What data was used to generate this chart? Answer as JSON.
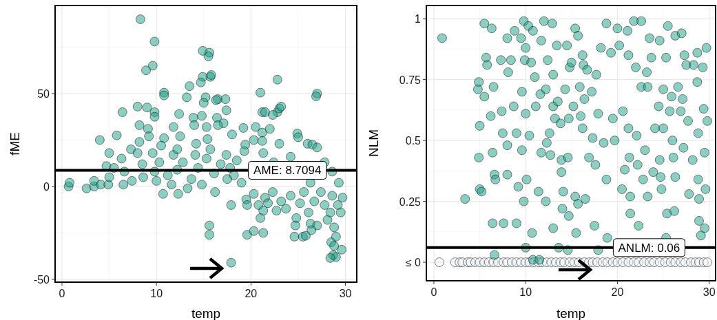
{
  "chart_data": [
    {
      "type": "scatter",
      "xlabel": "temp",
      "ylabel": "fME",
      "xlim": [
        -0.73,
        31.2
      ],
      "ylim": [
        -51.5,
        97.4
      ],
      "xticks": [
        0,
        10,
        20,
        30
      ],
      "yticks": [
        -50,
        0,
        50
      ],
      "grid": true,
      "marker": "circle",
      "ref_lines": [
        {
          "axis": "y",
          "value": 8.7094,
          "label": "AME: 8.7094",
          "color": "#000000"
        }
      ],
      "series": [
        {
          "color": "#1b9e85",
          "x": [
            8.3,
            9.8,
            9.6,
            8.9,
            14.9,
            15.6,
            15.5,
            15.7,
            15.8,
            14.9,
            14.7,
            13.5,
            22.8,
            10.8,
            10.8,
            21.0,
            27.0,
            26.9,
            13.2,
            15.2,
            16.5,
            17.3,
            16.3,
            15.0,
            8.0,
            9.0,
            9.8,
            6.4,
            17.4,
            21.2,
            21.5,
            22.8,
            23.0,
            23.2,
            22.3,
            9.8,
            12.4,
            13.9,
            14.8,
            16.4,
            17.1,
            8.2,
            9.1,
            11.8,
            14.0,
            15.3,
            16.5,
            19.2,
            20.5,
            21.2,
            22.0,
            24.9,
            25.0,
            5.8,
            4.0,
            10.8,
            12.5,
            15.4,
            18.0,
            20.3,
            21.2,
            19.4,
            23.0,
            26.0,
            26.5,
            27.0,
            0.7,
            0.8,
            2.6,
            3.4,
            3.4,
            4.1,
            4.9,
            5.0,
            4.7,
            5.0,
            5.5,
            6.3,
            6.5,
            6.6,
            7.4,
            7.3,
            8.0,
            8.2,
            8.5,
            8.6,
            9.2,
            9.6,
            9.8,
            10.0,
            10.5,
            10.7,
            10.3,
            11.2,
            11.6,
            11.8,
            12.2,
            12.3,
            12.2,
            12.8,
            13.3,
            13.7,
            14.1,
            14.4,
            14.2,
            14.8,
            15.3,
            15.7,
            16.1,
            16.2,
            16.8,
            17.4,
            17.5,
            17.8,
            18.2,
            18.5,
            19.0,
            19.3,
            17.9,
            19.5,
            19.6,
            20.3,
            20.8,
            21.0,
            21.3,
            21.5,
            21.8,
            22.3,
            22.7,
            23.2,
            23.7,
            24.2,
            24.8,
            24.7,
            25.2,
            25.6,
            26.1,
            26.3,
            26.7,
            27.0,
            27.4,
            27.8,
            28.1,
            28.4,
            28.6,
            28.8,
            29.2,
            29.5,
            29.7,
            21.3,
            22.4,
            24.2,
            26.3,
            27.8,
            28.6,
            29.3,
            15.6,
            15.6,
            17.9,
            19.6,
            20.3,
            21.3,
            24.6,
            25.5,
            25.8,
            26.4,
            28.5,
            28.7,
            29.0,
            28.4,
            29.6,
            28.8,
            29.0
          ],
          "values": [
            90,
            78,
            65,
            62.5,
            73,
            72,
            70,
            59,
            60,
            59,
            56,
            54,
            57.5,
            50.5,
            49,
            50.5,
            50,
            48.5,
            48,
            48,
            47,
            47,
            46.5,
            45,
            43,
            42.5,
            40,
            40,
            41,
            40,
            40,
            40,
            42,
            43,
            38.5,
            37.5,
            39,
            37,
            38,
            37,
            34,
            33,
            31,
            32,
            33,
            32,
            33,
            31.5,
            32,
            29,
            31,
            28.5,
            26.5,
            27.5,
            25,
            26,
            27,
            25.5,
            28,
            25,
            24.5,
            22.5,
            23,
            23,
            22.5,
            21,
            0,
            2,
            -1,
            0,
            3,
            1,
            1,
            5,
            11,
            18,
            10,
            15,
            1,
            8,
            3,
            20,
            18,
            24,
            12,
            5,
            27,
            18,
            8,
            3,
            22,
            -4,
            13,
            6,
            1,
            17,
            20,
            -4,
            9,
            13,
            -1,
            4,
            17,
            10,
            23,
            1,
            15,
            20,
            7,
            -3,
            12,
            17,
            4,
            10,
            6,
            14,
            2,
            19,
            -10,
            -7,
            -10,
            -4,
            -10,
            -17,
            -13,
            -6,
            -9,
            -3,
            -13,
            -8,
            -12,
            -5,
            -17,
            -21,
            -9,
            -3,
            -14,
            -20,
            -8,
            -21,
            -3,
            -10,
            -18,
            -14,
            -5,
            -22,
            -10,
            -14,
            -6,
            18,
            13,
            16,
            2,
            13,
            8,
            2,
            -21,
            -26,
            -41,
            -26,
            -24,
            -25,
            -27,
            -27,
            -26.5,
            -23.5,
            -30,
            -37,
            -38,
            -38.5,
            -34,
            -32,
            -27
          ]
        }
      ]
    },
    {
      "type": "scatter",
      "xlabel": "temp",
      "ylabel": "NLM",
      "xlim": [
        -0.82,
        30.7
      ],
      "ylim": [
        -0.076,
        1.054
      ],
      "xticks": [
        0,
        10,
        20,
        30
      ],
      "yticks": [
        {
          "value": 0,
          "label": "≤ 0"
        },
        0.25,
        0.5,
        0.75,
        1
      ],
      "grid": true,
      "marker": "circle",
      "ref_lines": [
        {
          "axis": "y",
          "value": 0.06,
          "label": "ANLM: 0.06",
          "color": "#000000"
        }
      ],
      "series": [
        {
          "color": "#eef5fc",
          "x": [
            0.6,
            2.3,
            2.8,
            3.1,
            3.7,
            4.0,
            4.5,
            5.0,
            5.5,
            6.0,
            6.5,
            7.0,
            7.6,
            8.0,
            8.5,
            9.0,
            9.5,
            10.0,
            10.4,
            10.9,
            11.4,
            11.8,
            12.3,
            12.8,
            13.3,
            13.8,
            14.2,
            14.8,
            15.3,
            15.8,
            16.4,
            16.9,
            17.3,
            17.8,
            18.4,
            18.9,
            19.5,
            20.0,
            20.6,
            21.2,
            21.8,
            22.3,
            22.9,
            23.5,
            24.0,
            24.6,
            25.2,
            25.8,
            26.3,
            26.9,
            27.4,
            28.0,
            28.5,
            28.9,
            29.4,
            29.8
          ],
          "values": [
            0,
            0,
            0,
            0,
            0,
            0,
            0,
            0,
            0,
            0,
            0,
            0,
            0,
            0,
            0,
            0,
            0,
            0,
            0,
            0,
            0,
            0,
            0,
            0,
            0,
            0,
            0,
            0,
            0,
            0,
            0,
            0,
            0,
            0,
            0,
            0,
            0,
            0,
            0,
            0,
            0,
            0,
            0,
            0,
            0,
            0,
            0,
            0,
            0,
            0,
            0,
            0,
            0,
            0,
            0,
            0
          ]
        },
        {
          "color": "#1b9e85",
          "x": [
            0.9,
            3.4,
            4.9,
            4.8,
            4.9,
            5.0,
            5.0,
            5.2,
            5.5,
            5.7,
            5.5,
            5.8,
            6.3,
            6.2,
            6.5,
            6.4,
            6.6,
            6.7,
            6.4,
            6.6,
            7.3,
            7.4,
            7.5,
            7.6,
            8.0,
            8.1,
            8.0,
            8.0,
            8.4,
            8.8,
            8.7,
            9.0,
            9.0,
            9.2,
            9.5,
            9.6,
            9.6,
            9.8,
            9.9,
            9.8,
            10.0,
            10.0,
            10.1,
            10.0,
            10.3,
            10.4,
            10.6,
            10.7,
            10.8,
            10.8,
            11.0,
            11.1,
            11.4,
            11.6,
            11.5,
            11.7,
            11.7,
            12.0,
            12.2,
            12.3,
            12.2,
            12.4,
            12.6,
            12.7,
            12.9,
            13.0,
            13.0,
            13.2,
            13.0,
            13.4,
            13.5,
            13.6,
            13.8,
            13.9,
            13.9,
            14.0,
            14.1,
            14.3,
            14.5,
            14.6,
            14.7,
            14.7,
            14.6,
            14.8,
            15.0,
            15.4,
            15.2,
            15.4,
            15.5,
            15.7,
            15.7,
            15.9,
            16.0,
            16.2,
            16.3,
            16.2,
            16.4,
            16.5,
            16.7,
            16.9,
            17.2,
            17.3,
            17.7,
            17.6,
            17.5,
            17.9,
            17.9,
            18.2,
            18.5,
            18.8,
            18.8,
            18.9,
            19.3,
            19.5,
            19.7,
            20.0,
            20.2,
            20.5,
            20.6,
            20.8,
            21.1,
            21.2,
            21.2,
            21.3,
            21.4,
            21.4,
            21.8,
            22.0,
            22.1,
            22.2,
            22.3,
            22.6,
            22.6,
            22.8,
            23.0,
            23.2,
            23.3,
            23.3,
            23.5,
            23.7,
            23.9,
            24.1,
            24.5,
            24.6,
            24.6,
            24.7,
            24.8,
            25.0,
            25.0,
            25.3,
            25.4,
            25.3,
            25.5,
            25.7,
            25.9,
            26.0,
            26.1,
            26.2,
            26.3,
            26.3,
            26.6,
            26.9,
            27.0,
            27.1,
            27.3,
            27.2,
            27.5,
            27.7,
            27.8,
            28.3,
            28.2,
            28.7,
            28.7,
            28.8,
            28.8,
            28.9,
            28.9,
            29.1,
            29.3,
            29.4,
            29.5,
            29.7,
            29.8,
            29.6,
            29.5
          ],
          "values": [
            0.92,
            0.26,
            0.74,
            0.71,
            0.43,
            0.56,
            0.3,
            0.29,
            0.98,
            0.84,
            0.68,
            0.81,
            0.96,
            0.6,
            0.72,
            0.45,
            0.36,
            0.34,
            0.16,
            0.03,
            0.83,
            0.62,
            0.53,
            0.16,
            0.92,
            0.78,
            0.48,
            0.36,
            0.83,
            0.95,
            0.64,
            0.53,
            0.16,
            0.31,
            0.92,
            0.7,
            0.46,
            0.99,
            0.83,
            0.25,
            0.88,
            0.61,
            0.34,
            0.06,
            0.97,
            0.52,
            0.82,
            0.12,
            0.95,
            0.01,
            0.76,
            0.64,
            0.29,
            0.69,
            0.01,
            0.91,
            0.45,
            0.99,
            0.71,
            0.49,
            0.25,
            0.83,
            0.53,
            0.44,
            0.98,
            0.77,
            0.64,
            0.59,
            0.14,
            0.89,
            0.66,
            0.06,
            0.57,
            0.42,
            0.37,
            0.22,
            0.29,
            0.71,
            0.89,
            0.43,
            0.59,
            0.19,
            0.05,
            0.8,
            0.82,
            0.96,
            0.64,
            0.27,
            0.12,
            0.93,
            0.24,
            0.72,
            0.6,
            0.85,
            0.81,
            0.55,
            0.67,
            0.26,
            0.79,
            0.43,
            0.7,
            0.51,
            0.77,
            0.4,
            0.15,
            0.61,
            0.05,
            0.88,
            0.49,
            0.98,
            0.34,
            0.1,
            0.86,
            0.59,
            0.5,
            0.96,
            0.89,
            0.3,
            0.62,
            0.38,
            0.95,
            0.85,
            0.55,
            0.43,
            0.27,
            0.2,
            0.99,
            0.8,
            0.52,
            0.4,
            0.15,
            0.72,
            0.99,
            0.34,
            0.46,
            0.78,
            0.72,
            0.27,
            0.92,
            0.84,
            0.37,
            0.55,
            0.64,
            0.91,
            0.42,
            0.35,
            0.3,
            0.71,
            0.55,
            0.84,
            0.2,
            0.1,
            0.97,
            0.62,
            0.68,
            0.5,
            0.43,
            0.21,
            0.93,
            0.35,
            0.72,
            0.62,
            0.94,
            0.67,
            0.85,
            0.47,
            0.81,
            0.58,
            0.28,
            0.81,
            0.42,
            0.86,
            0.74,
            0.53,
            0.34,
            0.26,
            0.17,
            0.11,
            0.8,
            0.63,
            0.45,
            0.88,
            0.58,
            0.3,
            0.14
          ]
        }
      ]
    }
  ]
}
